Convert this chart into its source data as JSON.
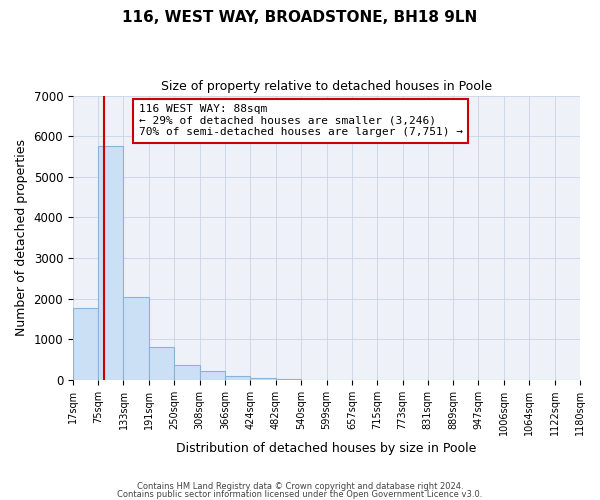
{
  "title": "116, WEST WAY, BROADSTONE, BH18 9LN",
  "subtitle": "Size of property relative to detached houses in Poole",
  "xlabel": "Distribution of detached houses by size in Poole",
  "ylabel": "Number of detached properties",
  "bar_left_edges": [
    17,
    75,
    133,
    191,
    250,
    308,
    366,
    424,
    482,
    540,
    599,
    657,
    715,
    773,
    831,
    889,
    947,
    1006,
    1064,
    1122
  ],
  "bar_heights": [
    1780,
    5750,
    2050,
    820,
    360,
    220,
    100,
    55,
    20,
    5,
    2,
    1,
    1,
    0,
    0,
    0,
    0,
    0,
    0,
    0
  ],
  "bin_width": 58,
  "bar_facecolor": "#cce0f5",
  "bar_edgecolor": "#8ab4d4",
  "property_value": 88,
  "red_line_color": "#cc0000",
  "annotation_text": "116 WEST WAY: 88sqm\n← 29% of detached houses are smaller (3,246)\n70% of semi-detached houses are larger (7,751) →",
  "annotation_box_edgecolor": "#cc0000",
  "annotation_box_facecolor": "#ffffff",
  "tick_labels": [
    "17sqm",
    "75sqm",
    "133sqm",
    "191sqm",
    "250sqm",
    "308sqm",
    "366sqm",
    "424sqm",
    "482sqm",
    "540sqm",
    "599sqm",
    "657sqm",
    "715sqm",
    "773sqm",
    "831sqm",
    "889sqm",
    "947sqm",
    "1006sqm",
    "1064sqm",
    "1122sqm",
    "1180sqm"
  ],
  "ylim": [
    0,
    7000
  ],
  "yticks": [
    0,
    1000,
    2000,
    3000,
    4000,
    5000,
    6000,
    7000
  ],
  "grid_color": "#c8d4e4",
  "footnote1": "Contains HM Land Registry data © Crown copyright and database right 2024.",
  "footnote2": "Contains public sector information licensed under the Open Government Licence v3.0.",
  "background_color": "#ffffff",
  "plot_background_color": "#eef2f8"
}
